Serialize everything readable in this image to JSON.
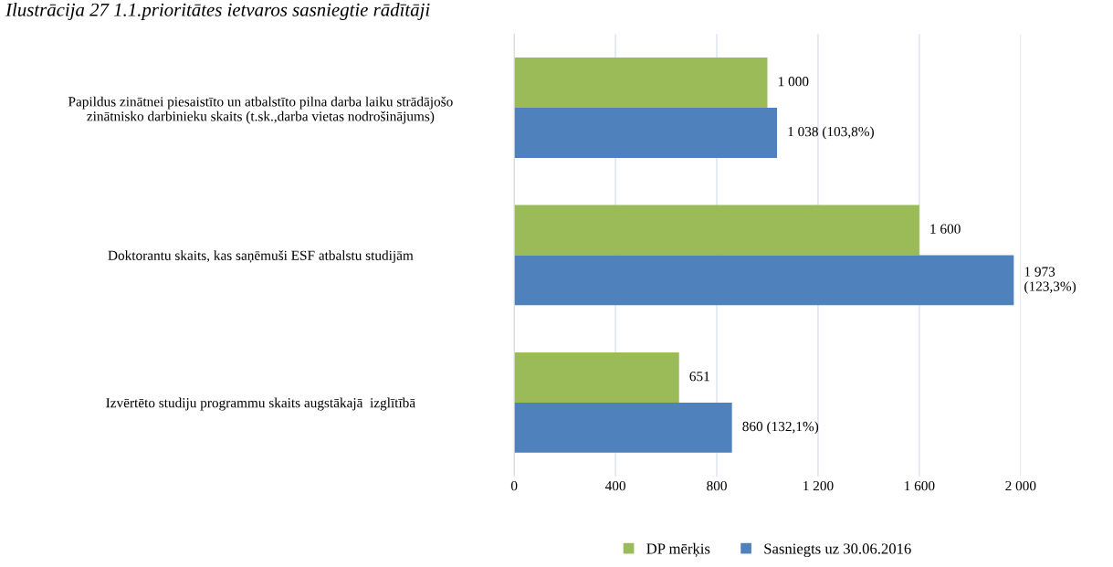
{
  "chart_data": {
    "type": "bar",
    "orientation": "horizontal",
    "title": "Ilustrācija 27 1.1.prioritātes ietvaros sasniegtie rādītāji",
    "categories": [
      "Papildus zinātnei piesaistīto un atbalstīto pilna darba laiku strādājošo zinātnisko darbinieku skaits (t.sk.,darba vietas nodrošinājums)",
      "Doktorantu skaits, kas saņēmuši ESF atbalstu studijām",
      "Izvērtēto studiju programmu skaits augstākajā  izglītībā"
    ],
    "series": [
      {
        "name": "DP mērķis",
        "color": "#9bbb59",
        "values": [
          1000,
          1600,
          651
        ],
        "value_labels": [
          "1 000",
          "1 600",
          "651"
        ]
      },
      {
        "name": "Sasniegts uz 30.06.2016",
        "color": "#4f81bd",
        "values": [
          1038,
          1973,
          860
        ],
        "value_labels": [
          "1 038 (103,8%)",
          "1 973\n(123,3%)",
          "860 (132,1%)"
        ]
      }
    ],
    "xlim": [
      0,
      2000
    ],
    "xticks": [
      0,
      400,
      800,
      {
        "value": 1200,
        "label": "1 200"
      },
      {
        "value": 1600,
        "label": "1 600"
      },
      {
        "value": 2000,
        "label": "2 000"
      }
    ],
    "grid": "x",
    "legend": "bottom"
  }
}
